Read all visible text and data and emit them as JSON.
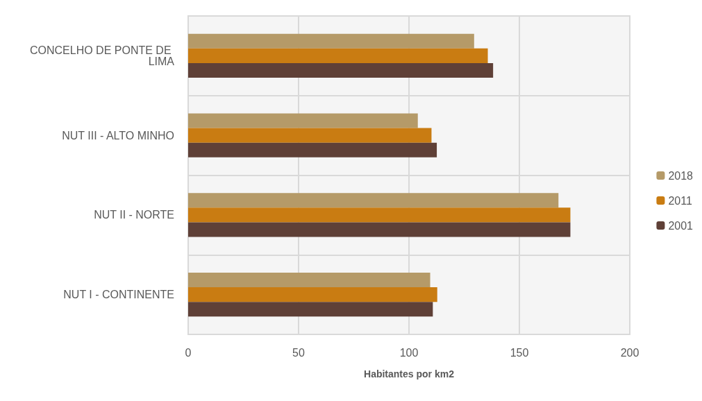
{
  "chart_data": {
    "type": "bar",
    "orientation": "horizontal",
    "xlabel": "Habitantes por km2",
    "categories": [
      "CONCELHO DE PONTE DE LIMA",
      "NUT III - ALTO MINHO",
      "NUT II - NORTE",
      "NUT I - CONTINENTE"
    ],
    "series": [
      {
        "name": "2018",
        "color": "#b59a68",
        "values": [
          129.5,
          104,
          167.7,
          109.6
        ]
      },
      {
        "name": "2011",
        "color": "#c97c12",
        "values": [
          135.7,
          110.2,
          173.1,
          112.8
        ]
      },
      {
        "name": "2001",
        "color": "#5f4037",
        "values": [
          138.1,
          112.6,
          173.1,
          110.8
        ]
      }
    ],
    "xlim": [
      0,
      200
    ],
    "xticks": [
      0,
      50,
      100,
      150,
      200
    ],
    "grid": true,
    "legend": "right"
  }
}
